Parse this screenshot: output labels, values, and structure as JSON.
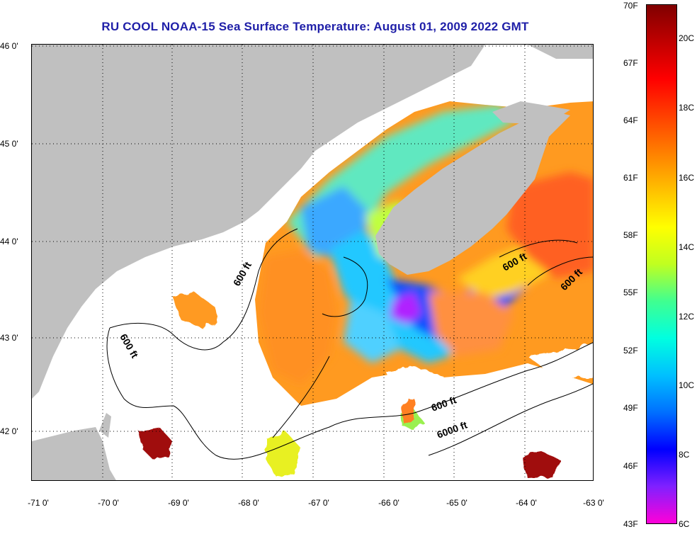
{
  "title": "RU COOL  NOAA-15  Sea Surface Temperature:  August 01, 2009 2022 GMT",
  "lon_labels": [
    "-71 0'",
    "-70 0'",
    "-69 0'",
    "-68 0'",
    "-67 0'",
    "-66 0'",
    "-65 0'",
    "-64 0'",
    "-63 0'"
  ],
  "lat_labels": [
    "46 0'",
    "45 0'",
    "44 0'",
    "43 0'",
    "42 0'"
  ],
  "contour_labels": [
    "600 ft",
    "600 ft",
    "600 ft",
    "600 ft",
    "600 ft",
    "6000 ft"
  ],
  "colorbar": {
    "f_labels": [
      "70F",
      "67F",
      "64F",
      "61F",
      "58F",
      "55F",
      "52F",
      "49F",
      "46F",
      "43F"
    ],
    "c_labels": [
      "20C",
      "18C",
      "16C",
      "14C",
      "12C",
      "10C",
      "8C",
      "6C"
    ],
    "colors": [
      "#ff00d8",
      "#8020ff",
      "#0000ff",
      "#0070ff",
      "#00c0ff",
      "#00ffe0",
      "#40ff90",
      "#c0ff20",
      "#ffff00",
      "#ffc000",
      "#ff8000",
      "#ff4000",
      "#ff0000",
      "#c00000",
      "#800000"
    ]
  },
  "palette": {
    "land": "#c0c0c0",
    "no_data": "#ffffff",
    "title_color": "#1f1fa8"
  }
}
